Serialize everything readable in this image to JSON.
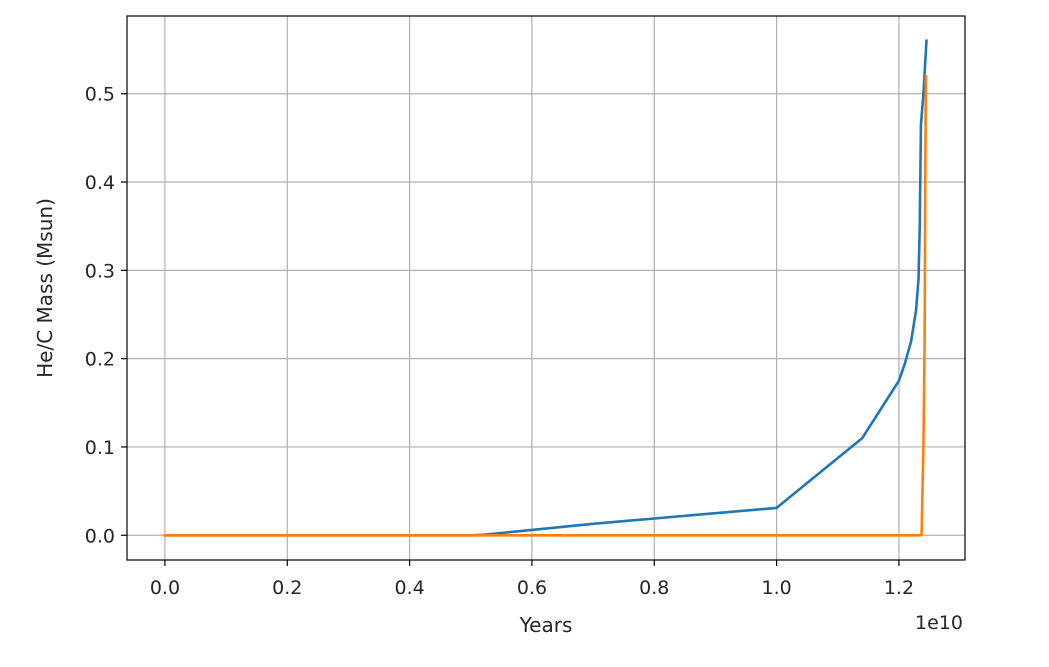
{
  "chart_data": {
    "type": "line",
    "title": "",
    "xlabel": "Years",
    "ylabel": "He/C Mass (Msun)",
    "x_offset_text": "1e10",
    "x_tick_labels": [
      "0.0",
      "0.2",
      "0.4",
      "0.6",
      "0.8",
      "1.0",
      "1.2"
    ],
    "y_tick_labels": [
      "0.0",
      "0.1",
      "0.2",
      "0.3",
      "0.4",
      "0.5"
    ],
    "x_ticks": [
      0.0,
      0.2,
      0.4,
      0.6,
      0.8,
      1.0,
      1.2
    ],
    "y_ticks": [
      0.0,
      0.1,
      0.2,
      0.3,
      0.4,
      0.5
    ],
    "xlim": [
      -0.062,
      1.308
    ],
    "ylim": [
      -0.028,
      0.588
    ],
    "grid": true,
    "legend": "none",
    "series": [
      {
        "color": "#1f77b4",
        "x": [
          0.0,
          0.5,
          0.52,
          0.6,
          0.7,
          0.8,
          0.9,
          1.0,
          1.14,
          1.2,
          1.21,
          1.22,
          1.228,
          1.232,
          1.234,
          1.236,
          1.24,
          1.245
        ],
        "y": [
          0.0,
          0.0,
          0.0005,
          0.006,
          0.013,
          0.019,
          0.025,
          0.031,
          0.11,
          0.175,
          0.195,
          0.22,
          0.255,
          0.29,
          0.35,
          0.465,
          0.5,
          0.56
        ]
      },
      {
        "color": "#ff7f0e",
        "x": [
          0.0,
          1.0,
          1.235,
          1.237,
          1.24,
          1.242,
          1.243,
          1.244
        ],
        "y": [
          0.0,
          0.0,
          0.0,
          0.0005,
          0.1,
          0.22,
          0.4,
          0.52
        ]
      }
    ]
  }
}
